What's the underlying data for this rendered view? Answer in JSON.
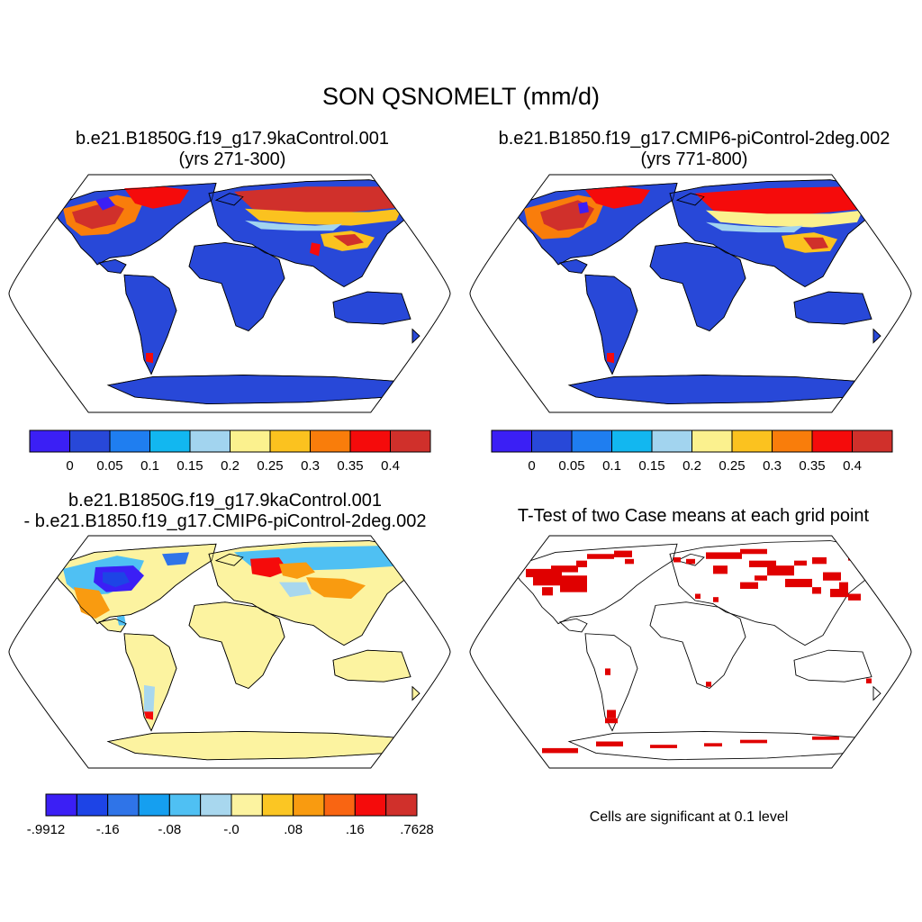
{
  "title": "SON QSNOMELT (mm/d)",
  "panels": [
    {
      "id": "case1",
      "title_line1": "b.e21.B1850G.f19_g17.9kaControl.001",
      "title_line2": "(yrs 271-300)",
      "colorbar": {
        "colors": [
          "#3b1ff5",
          "#2848d8",
          "#1f7ef0",
          "#12b7f0",
          "#a2d4ef",
          "#fbf18e",
          "#fbc21f",
          "#f97d0b",
          "#f50b0b",
          "#d0302b"
        ],
        "labels": [
          "0",
          "0.05",
          "0.1",
          "0.15",
          "0.2",
          "0.25",
          "0.3",
          "0.35",
          "0.4"
        ]
      }
    },
    {
      "id": "case2",
      "title_line1": "b.e21.B1850.f19_g17.CMIP6-piControl-2deg.002",
      "title_line2": "(yrs 771-800)",
      "colorbar": {
        "colors": [
          "#3b1ff5",
          "#2848d8",
          "#1f7ef0",
          "#12b7f0",
          "#a2d4ef",
          "#fbf18e",
          "#fbc21f",
          "#f97d0b",
          "#f50b0b",
          "#d0302b"
        ],
        "labels": [
          "0",
          "0.05",
          "0.1",
          "0.15",
          "0.2",
          "0.25",
          "0.3",
          "0.35",
          "0.4"
        ]
      }
    },
    {
      "id": "difference",
      "title_line1": "b.e21.B1850G.f19_g17.9kaControl.001",
      "title_line2": "- b.e21.B1850.f19_g17.CMIP6-piControl-2deg.002",
      "colorbar": {
        "colors": [
          "#3b1ff5",
          "#1d44e6",
          "#2f74e8",
          "#159ff0",
          "#4fc0f3",
          "#a8d7ee",
          "#fcf3a0",
          "#fbc623",
          "#f99b10",
          "#f96512",
          "#f50b0b",
          "#d0302b"
        ],
        "labels": [
          "-.9912",
          "-.16",
          "-.08",
          "-.0",
          ".08",
          ".16",
          ".7628"
        ]
      }
    },
    {
      "id": "ttest",
      "title": "T-Test of two Case means at each grid point",
      "note": "Cells are significant at 0.1 level",
      "sig_color": "#e00000"
    }
  ]
}
